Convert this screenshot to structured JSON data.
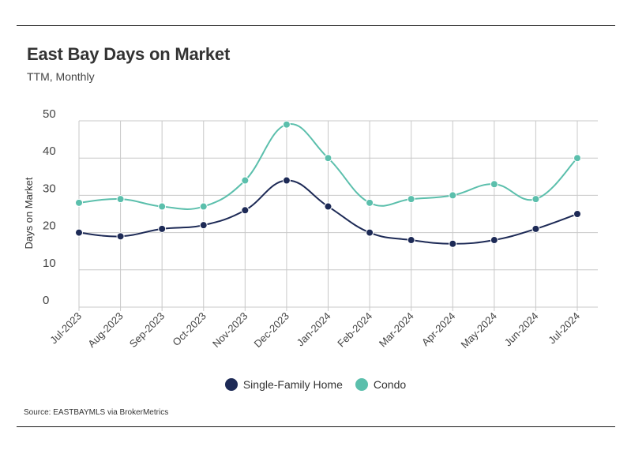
{
  "header": {
    "title": "East Bay Days on Market",
    "subtitle": "TTM, Monthly"
  },
  "footer": {
    "source": "Source:  EASTBAYMLS via BrokerMetrics"
  },
  "colors": {
    "single_family": "#1d2a56",
    "condo": "#5bbfac",
    "grid": "#c8c8c8",
    "axis_text": "#444444"
  },
  "chart_data": {
    "type": "line",
    "title": "East Bay Days on Market",
    "subtitle": "TTM, Monthly",
    "xlabel": "",
    "ylabel": "Days on Market",
    "categories": [
      "Jul-2023",
      "Aug-2023",
      "Sep-2023",
      "Oct-2023",
      "Nov-2023",
      "Dec-2023",
      "Jan-2024",
      "Feb-2024",
      "Mar-2024",
      "Apr-2024",
      "May-2024",
      "Jun-2024",
      "Jul-2024"
    ],
    "ylim": [
      0,
      50
    ],
    "yticks": [
      "0",
      "10",
      "20",
      "30",
      "40",
      "50"
    ],
    "grid": true,
    "legend_position": "bottom",
    "series": [
      {
        "name": "Single-Family Home",
        "color": "#1d2a56",
        "values": [
          20,
          19,
          21,
          22,
          26,
          34,
          27,
          20,
          18,
          17,
          18,
          21,
          25
        ]
      },
      {
        "name": "Condo",
        "color": "#5bbfac",
        "values": [
          28,
          29,
          27,
          27,
          34,
          49,
          40,
          28,
          29,
          30,
          33,
          29,
          40
        ]
      }
    ],
    "source": "Source:  EASTBAYMLS via BrokerMetrics"
  }
}
